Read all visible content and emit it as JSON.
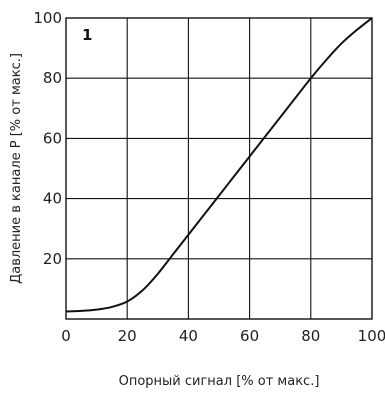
{
  "chart_data": {
    "type": "line",
    "panel_label": "1",
    "xlabel": "Опорный сигнал [% от макс.]",
    "ylabel": "Давление в канале P [% от макс.]",
    "xlim": [
      0,
      100
    ],
    "ylim": [
      0,
      100
    ],
    "x_ticks": [
      0,
      20,
      40,
      60,
      80,
      100
    ],
    "y_ticks": [
      20,
      40,
      60,
      80,
      100
    ],
    "grid": true,
    "series": [
      {
        "x": [
          0,
          5,
          10,
          15,
          20,
          25,
          30,
          35,
          40,
          45,
          50,
          55,
          60,
          65,
          70,
          75,
          80,
          85,
          90,
          95,
          100
        ],
        "y": [
          2.5,
          2.7,
          3.1,
          4,
          5.8,
          9.5,
          15,
          21.5,
          28,
          34.5,
          41,
          47.5,
          54,
          60.5,
          67,
          73.5,
          80,
          86,
          91.5,
          96,
          100
        ]
      }
    ]
  }
}
